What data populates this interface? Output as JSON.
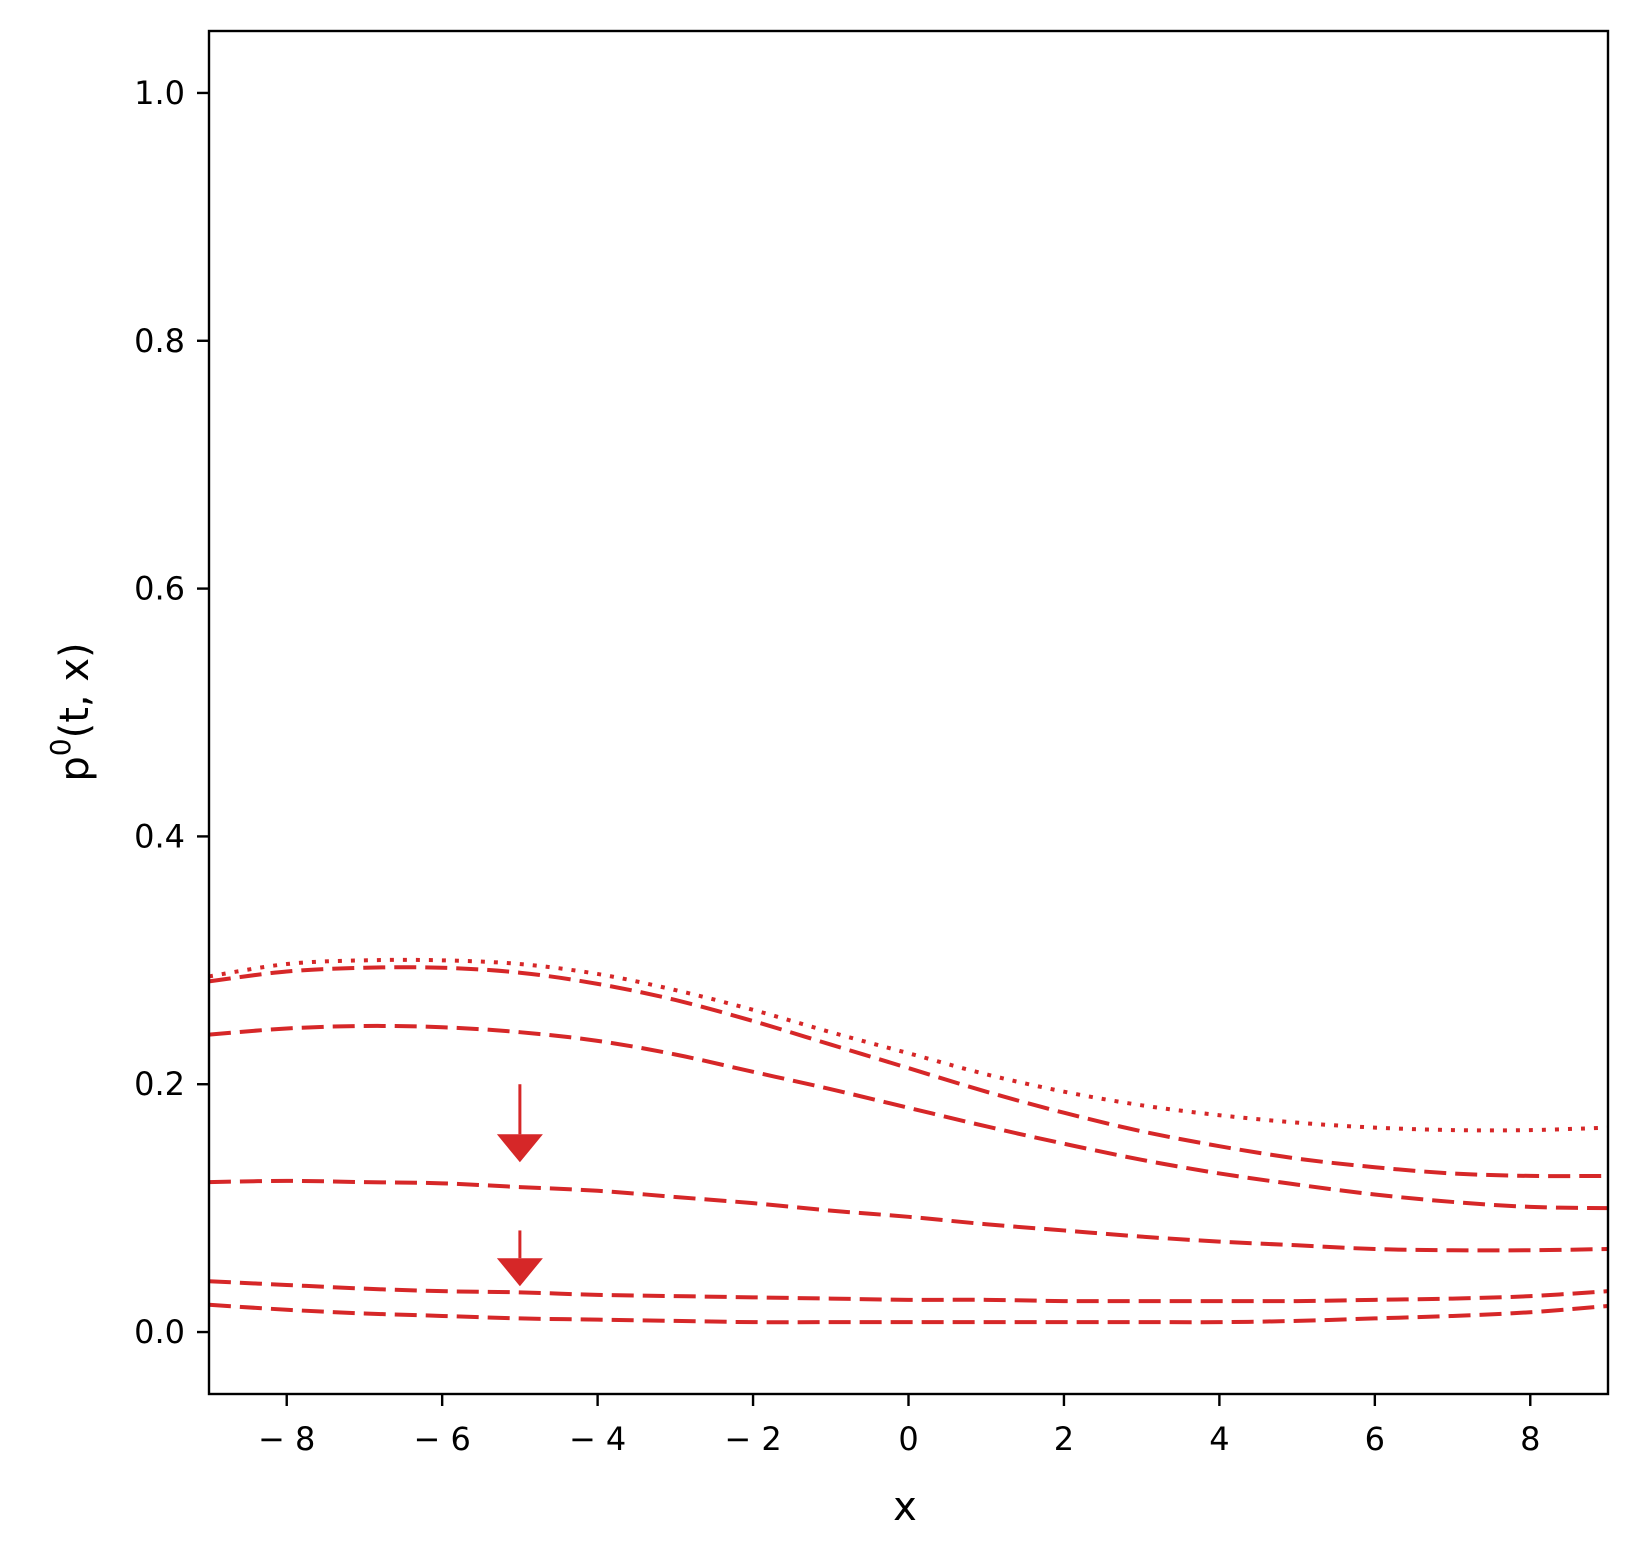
{
  "chart_data": {
    "type": "line",
    "xlabel": "x",
    "ylabel": {
      "base": "p",
      "superscript": "0",
      "args": "(t, x)"
    },
    "xlim": [
      -9,
      9
    ],
    "ylim": [
      -0.05,
      1.05
    ],
    "x_ticks": [
      -8,
      -6,
      -4,
      -2,
      0,
      2,
      4,
      6,
      8
    ],
    "x_tick_labels": [
      "− 8",
      "− 6",
      "− 4",
      "− 2",
      "0",
      "2",
      "4",
      "6",
      "8"
    ],
    "y_ticks": [
      0.0,
      0.2,
      0.4,
      0.6,
      0.8,
      1.0
    ],
    "y_tick_labels": [
      "0.0",
      "0.2",
      "0.4",
      "0.6",
      "0.8",
      "1.0"
    ],
    "grid": false,
    "color": "#d62728",
    "x": [
      -9,
      -8,
      -7,
      -6,
      -5,
      -4,
      -3,
      -2,
      -1,
      0,
      1,
      2,
      3,
      4,
      5,
      6,
      7,
      8,
      9
    ],
    "series": [
      {
        "style": "dotted",
        "values": [
          0.287,
          0.297,
          0.3,
          0.3,
          0.297,
          0.289,
          0.276,
          0.26,
          0.242,
          0.225,
          0.208,
          0.194,
          0.183,
          0.175,
          0.169,
          0.165,
          0.163,
          0.163,
          0.165
        ]
      },
      {
        "style": "dashed",
        "values": [
          0.283,
          0.291,
          0.294,
          0.294,
          0.29,
          0.281,
          0.268,
          0.251,
          0.232,
          0.213,
          0.194,
          0.177,
          0.162,
          0.15,
          0.14,
          0.133,
          0.128,
          0.126,
          0.126
        ]
      },
      {
        "style": "dashed",
        "values": [
          0.24,
          0.245,
          0.247,
          0.246,
          0.242,
          0.235,
          0.224,
          0.21,
          0.196,
          0.181,
          0.166,
          0.152,
          0.139,
          0.128,
          0.119,
          0.111,
          0.105,
          0.101,
          0.1
        ]
      },
      {
        "style": "dashed",
        "values": [
          0.121,
          0.122,
          0.121,
          0.12,
          0.117,
          0.114,
          0.109,
          0.104,
          0.098,
          0.093,
          0.087,
          0.082,
          0.077,
          0.073,
          0.07,
          0.067,
          0.066,
          0.066,
          0.067
        ]
      },
      {
        "style": "dashed",
        "values": [
          0.041,
          0.038,
          0.035,
          0.033,
          0.032,
          0.03,
          0.029,
          0.028,
          0.027,
          0.026,
          0.026,
          0.025,
          0.025,
          0.025,
          0.025,
          0.026,
          0.027,
          0.029,
          0.033
        ]
      },
      {
        "style": "dashed",
        "values": [
          0.022,
          0.018,
          0.015,
          0.013,
          0.011,
          0.01,
          0.009,
          0.008,
          0.008,
          0.008,
          0.008,
          0.008,
          0.008,
          0.008,
          0.009,
          0.011,
          0.013,
          0.016,
          0.021
        ]
      }
    ],
    "annotations": [
      {
        "type": "arrow",
        "x": -5,
        "y_from": 0.2,
        "y_to": 0.137
      },
      {
        "type": "arrow",
        "x": -5,
        "y_from": 0.082,
        "y_to": 0.037
      }
    ]
  }
}
